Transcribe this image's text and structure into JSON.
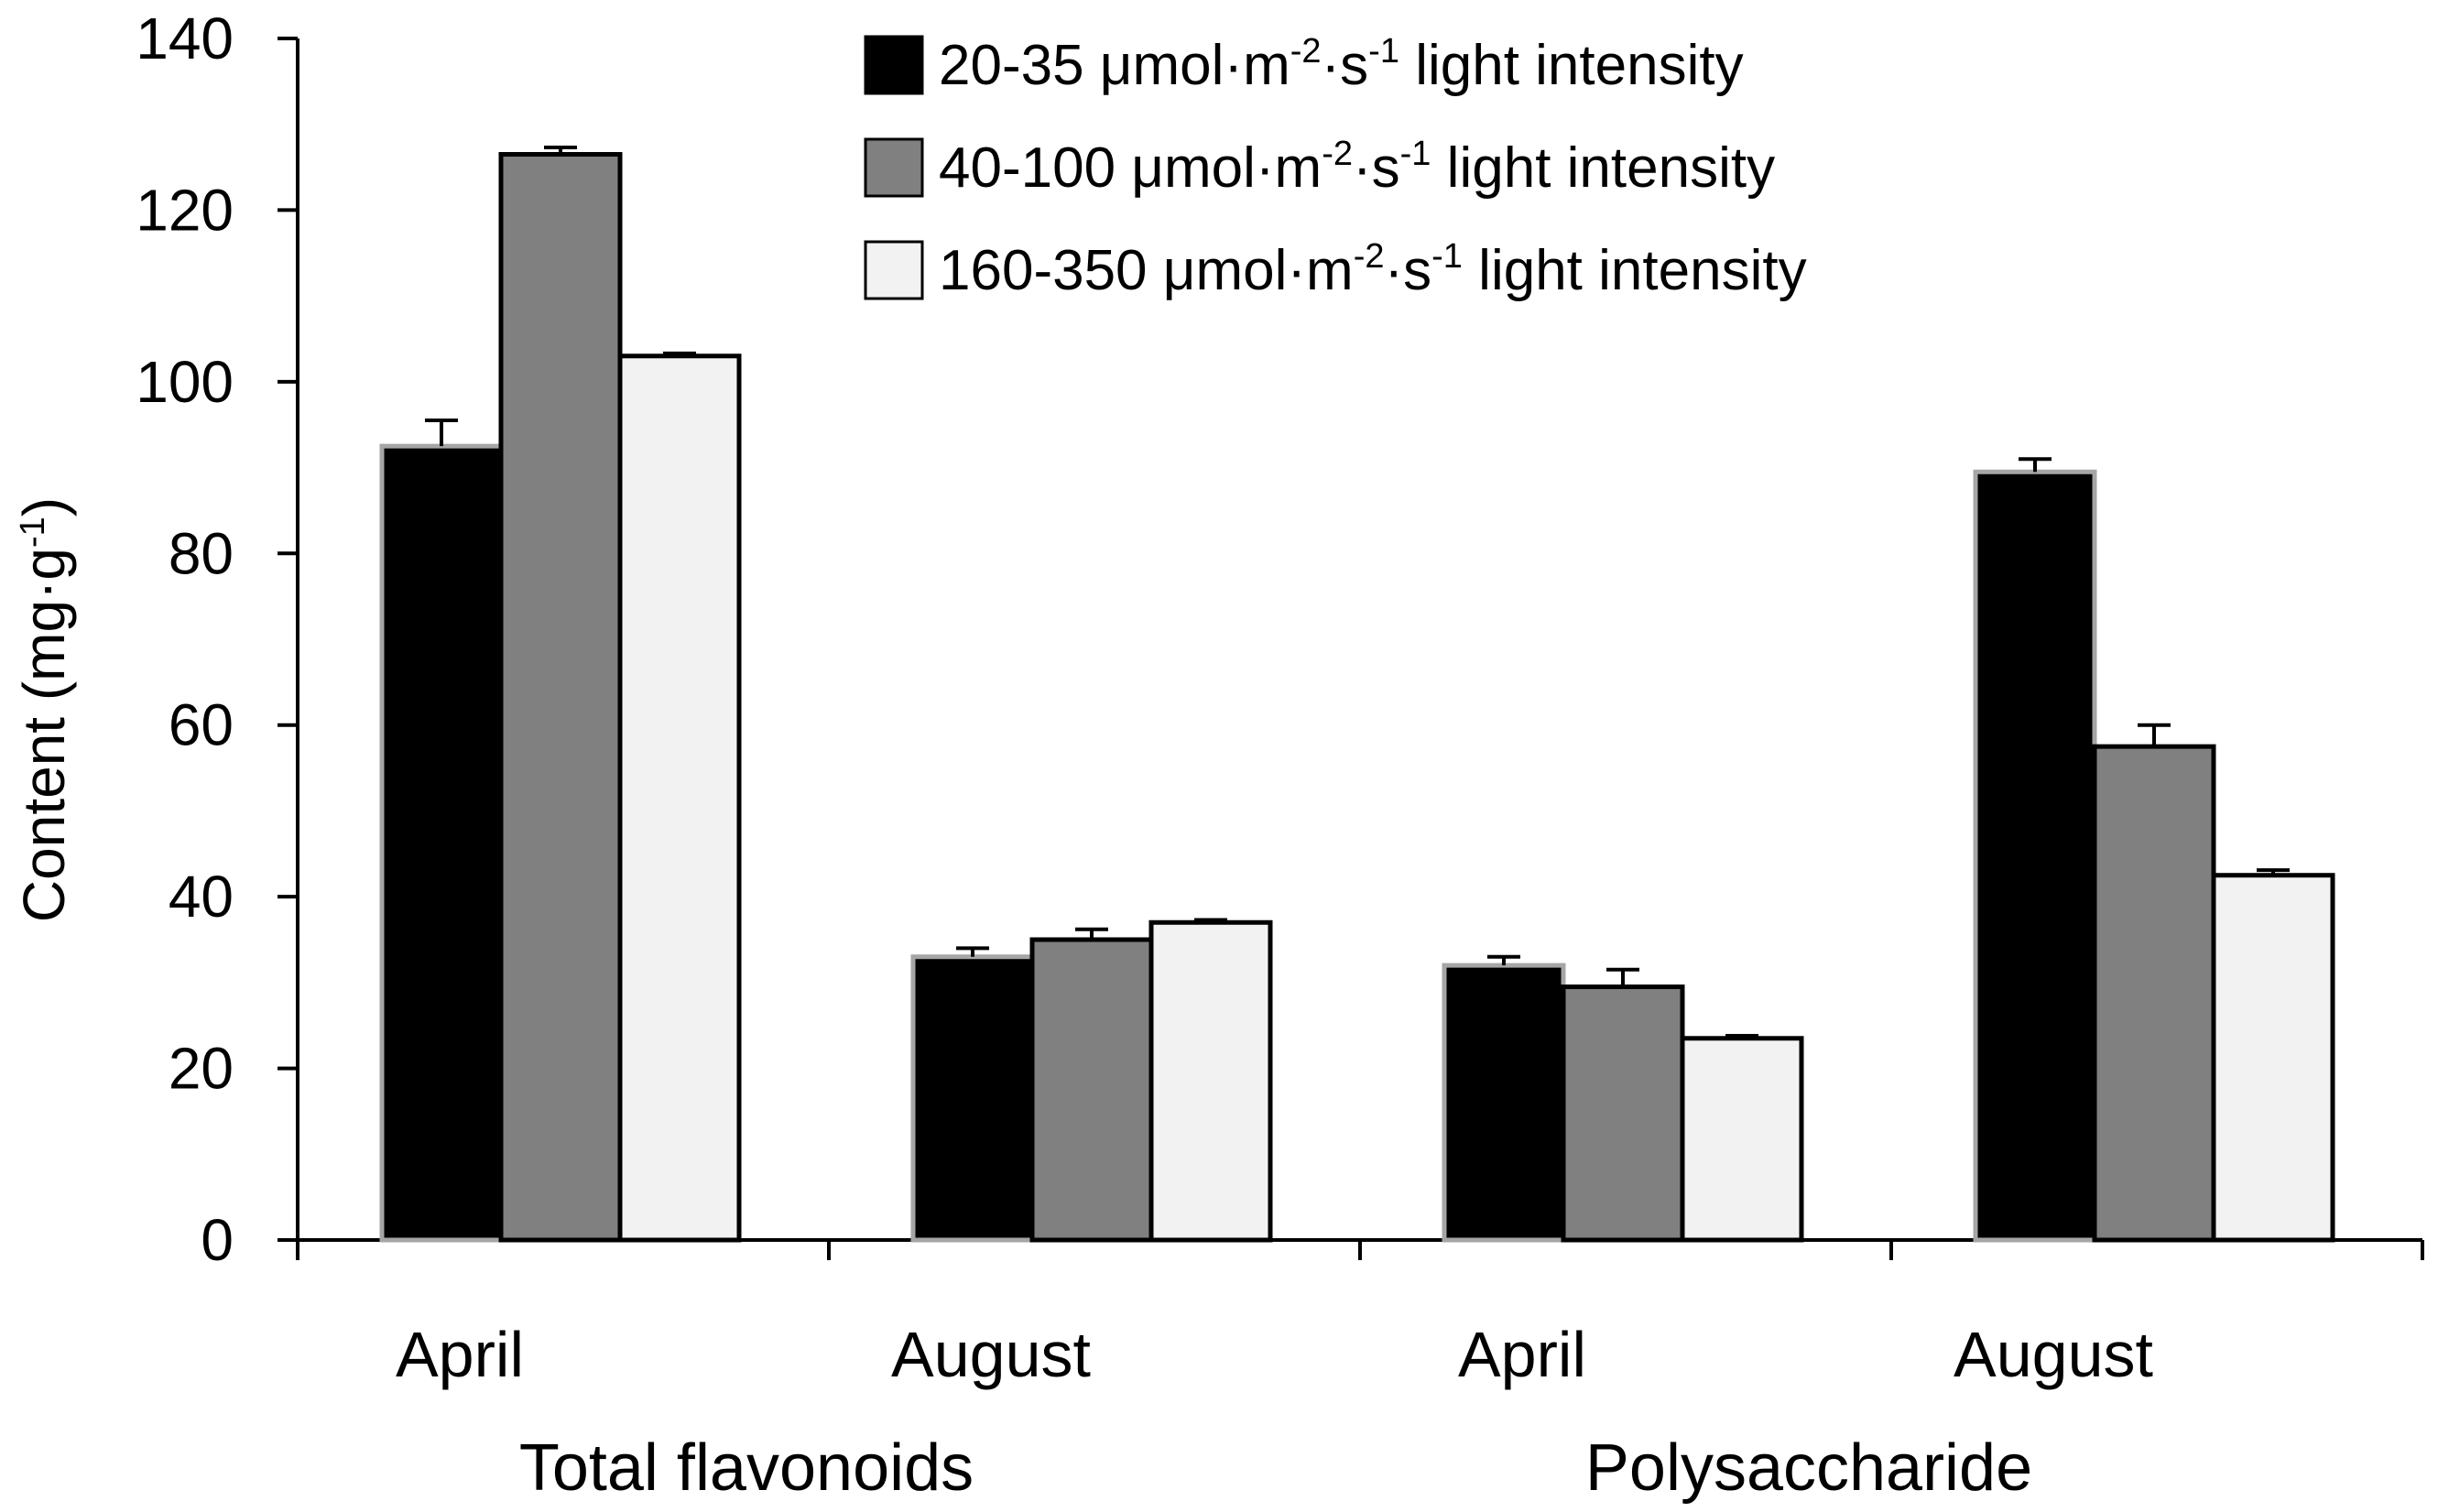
{
  "chart_data": {
    "type": "bar",
    "title": "",
    "ylabel": "Content (mg·g",
    "ylabel_sup": "-1",
    "ylabel_tail": ")",
    "ylim": [
      0,
      140
    ],
    "yticks": [
      0,
      20,
      40,
      60,
      80,
      100,
      120,
      140
    ],
    "categories": [
      "April",
      "August",
      "April",
      "August"
    ],
    "groups": [
      {
        "label": "Total flavonoids",
        "span": [
          0,
          1
        ]
      },
      {
        "label": "Polysaccharide",
        "span": [
          2,
          3
        ]
      }
    ],
    "series": [
      {
        "name": "20-35 μmol·m-2·s-1 light intensity",
        "legend_parts": [
          "20-35 μmol·m",
          "-2",
          "·s",
          "-1",
          " light intensity"
        ],
        "color": "#000000",
        "values": [
          92.5,
          33,
          32,
          89.5
        ],
        "errors": [
          3,
          1,
          1,
          1.5
        ]
      },
      {
        "name": "40-100 μmol·m-2·s-1 light intensity",
        "legend_parts": [
          "40-100 μmol·m",
          "-2",
          "·s",
          "-1",
          " light intensity"
        ],
        "color": "#808080",
        "values": [
          126.5,
          35,
          29.5,
          57.5
        ],
        "errors": [
          0.8,
          1.2,
          2,
          2.5
        ]
      },
      {
        "name": "160-350 μmol·m-2·s-1 light intensity",
        "legend_parts": [
          "160-350 μmol·m",
          "-2",
          "·s",
          "-1",
          " light intensity"
        ],
        "color": "#f2f2f2",
        "values": [
          103,
          37,
          23.5,
          42.5
        ],
        "errors": [
          0.3,
          0.3,
          0.3,
          0.6
        ]
      }
    ],
    "legend_position": "top-right",
    "grid": false
  }
}
